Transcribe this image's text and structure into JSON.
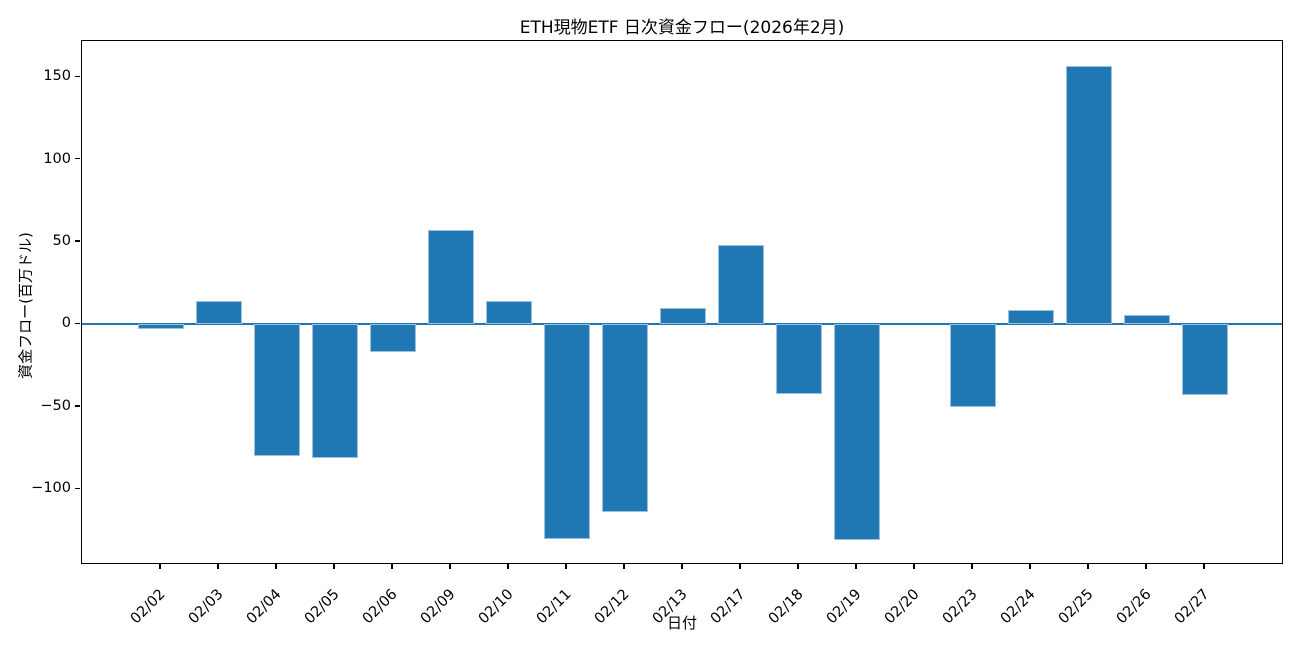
{
  "chart_data": {
    "type": "bar",
    "title": "ETH現物ETF 日次資金フロー(2026年2月)",
    "xlabel": "日付",
    "ylabel": "資金フロー(百万ドル)",
    "categories": [
      "02/02",
      "02/03",
      "02/04",
      "02/05",
      "02/06",
      "02/09",
      "02/10",
      "02/11",
      "02/12",
      "02/13",
      "02/17",
      "02/18",
      "02/19",
      "02/20",
      "02/23",
      "02/24",
      "02/25",
      "02/26",
      "02/27"
    ],
    "values": [
      -3,
      14,
      -80,
      -81,
      -17,
      57,
      14,
      -130,
      -114,
      10,
      48,
      -42,
      -131,
      0,
      -50,
      9,
      157,
      6,
      -43
    ],
    "yticks": [
      150,
      100,
      50,
      0,
      -50,
      -100
    ],
    "ylim": [
      -146,
      172
    ],
    "bar_color": "#1f77b4",
    "zero_line_color": "#1f77b4",
    "grid": false,
    "legend_position": "none",
    "x_tick_rotation_deg": 45
  }
}
